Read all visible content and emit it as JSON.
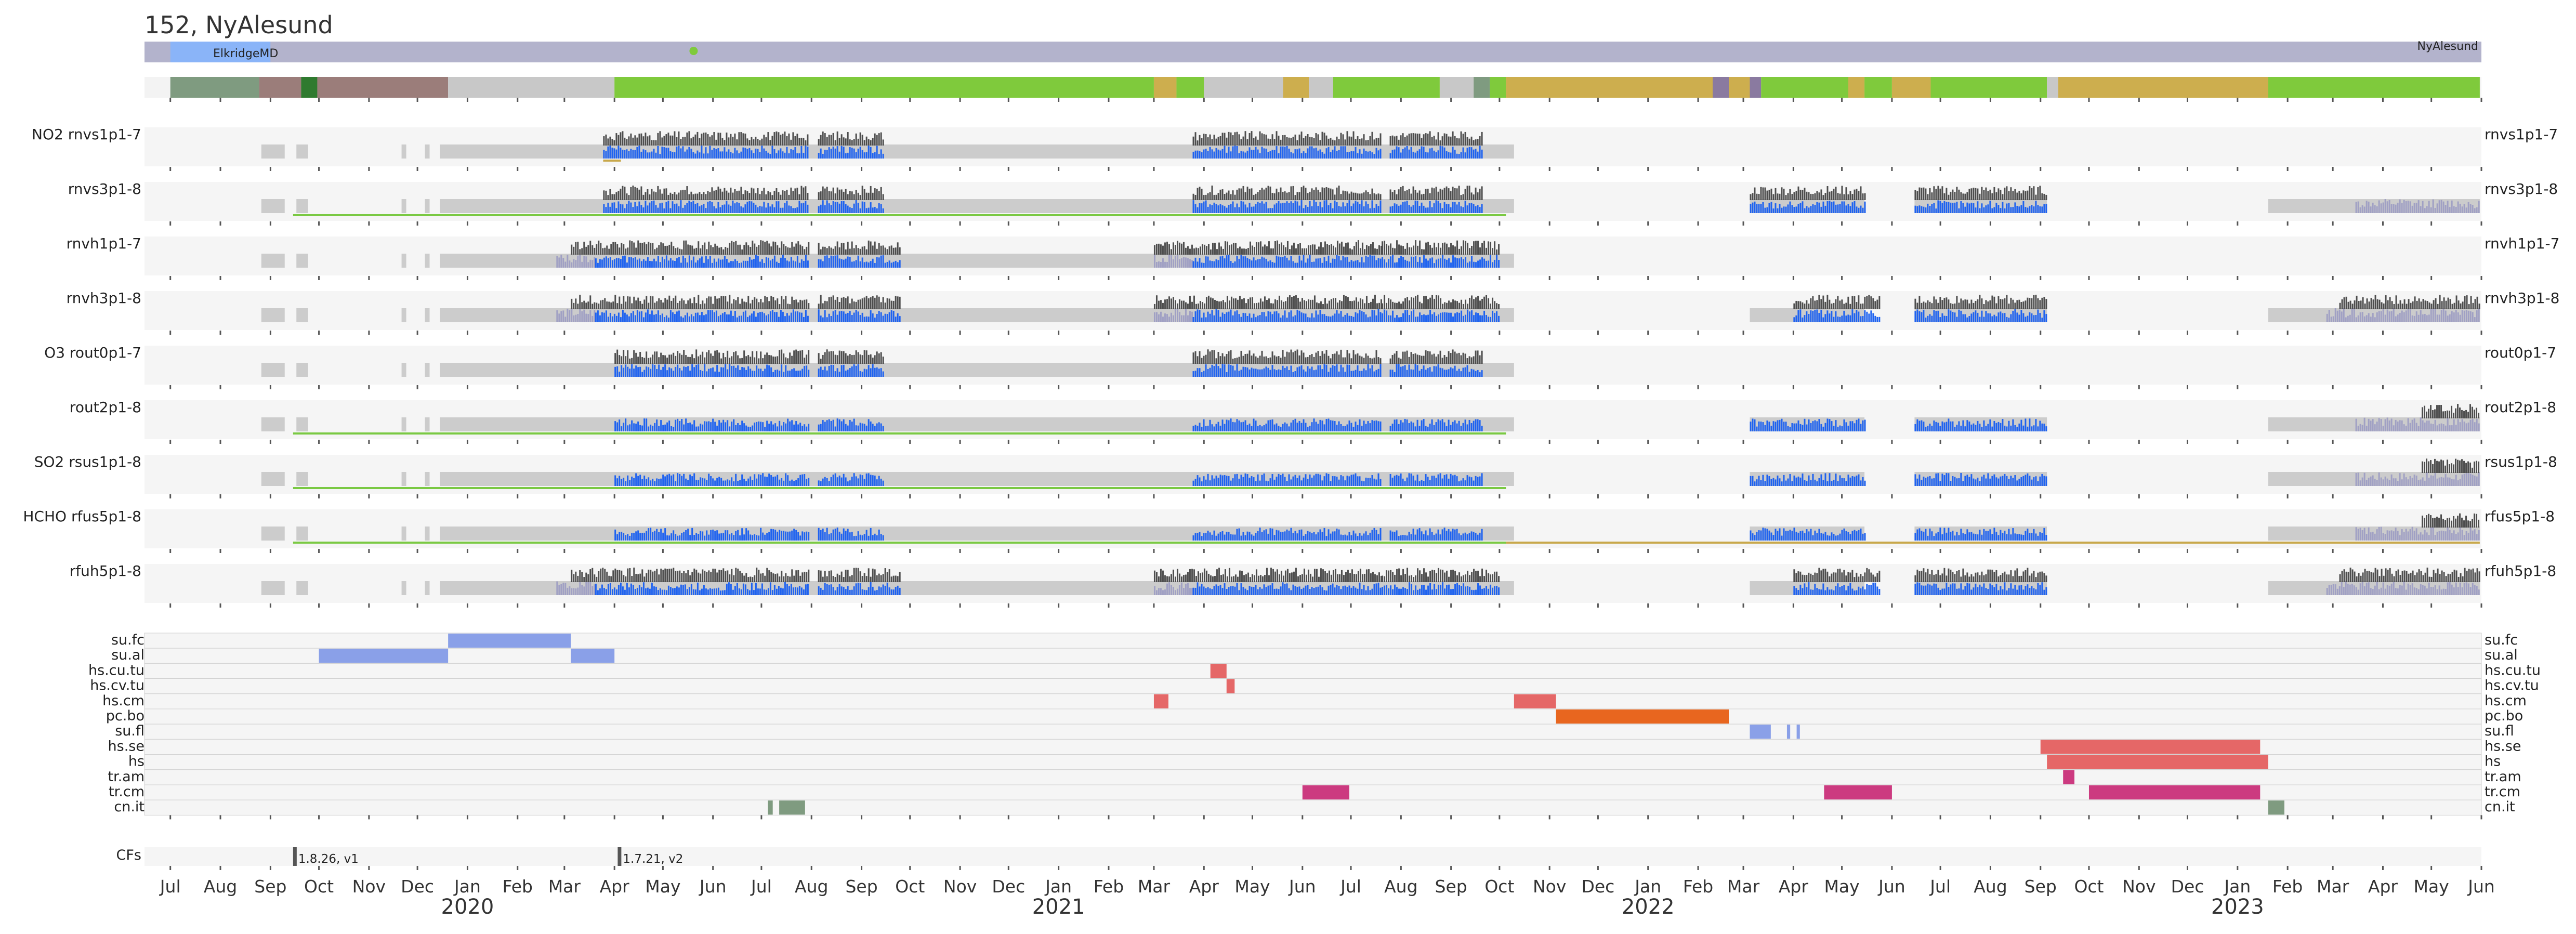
{
  "title": "152, NyAlesund",
  "location_labels": {
    "left": "ElkridgeMD",
    "right": "NyAlesund"
  },
  "colors": {
    "panel_bg": "#f5f5f5",
    "coverage_gray": "#cccccc",
    "dark_bars": "#4d4d4d",
    "blue_bars": "#1e62f0",
    "lavender_bars": "#a0a0c4",
    "green_line": "#7ac943",
    "yellow_line": "#c8a84b",
    "location_track": "#b3b3cc",
    "location_elkridge": "#8ab4f8",
    "status_green": "#7fca3c",
    "status_gold": "#cdae4e",
    "status_gray": "#c8c8c8",
    "status_brown": "#9b7d7a",
    "status_sage": "#7f9b80",
    "status_darkgreen": "#2f7a2f",
    "status_purple": "#8a7aa0",
    "event_blue": "#8aa0e8",
    "event_red": "#e56767",
    "event_orange": "#e8661f",
    "event_magenta": "#cc3a80",
    "event_sage": "#7f9b80",
    "cf_marker": "#555555"
  },
  "chart_data": {
    "type": "timeline",
    "time_range": [
      "2019-06-15",
      "2023-06-01"
    ],
    "x_months": [
      "Jul",
      "Aug",
      "Sep",
      "Oct",
      "Nov",
      "Dec",
      "Jan",
      "Feb",
      "Mar",
      "Apr",
      "May",
      "Jun",
      "Jul",
      "Aug",
      "Sep",
      "Oct",
      "Nov",
      "Dec",
      "Jan",
      "Feb",
      "Mar",
      "Apr",
      "May",
      "Jun",
      "Jul",
      "Aug",
      "Sep",
      "Oct",
      "Nov",
      "Dec",
      "Jan",
      "Feb",
      "Mar",
      "Apr",
      "May",
      "Jun",
      "Jul",
      "Aug",
      "Sep",
      "Oct",
      "Nov",
      "Dec",
      "Jan",
      "Feb",
      "Mar",
      "Apr",
      "May",
      "Jun"
    ],
    "x_years": [
      "2020",
      "2021",
      "2022",
      "2023"
    ],
    "location_track": [
      {
        "start": "2019-07-01",
        "end": "2019-09-01",
        "location": "ElkridgeMD"
      },
      {
        "start": "2019-09-01",
        "end": "2023-05-31",
        "location": "NyAlesund"
      }
    ],
    "location_marker_date": "2020-05-20",
    "status_track": [
      {
        "start": "2019-07-01",
        "end": "2019-08-25",
        "color": "sage"
      },
      {
        "start": "2019-08-25",
        "end": "2019-09-20",
        "color": "brown"
      },
      {
        "start": "2019-09-20",
        "end": "2019-09-30",
        "color": "darkgreen"
      },
      {
        "start": "2019-09-30",
        "end": "2019-12-20",
        "color": "brown"
      },
      {
        "start": "2019-12-20",
        "end": "2020-04-01",
        "color": "gray"
      },
      {
        "start": "2020-04-01",
        "end": "2021-03-01",
        "color": "green"
      },
      {
        "start": "2021-03-01",
        "end": "2021-03-15",
        "color": "gold"
      },
      {
        "start": "2021-03-15",
        "end": "2021-04-01",
        "color": "green"
      },
      {
        "start": "2021-04-01",
        "end": "2021-05-20",
        "color": "gray"
      },
      {
        "start": "2021-05-20",
        "end": "2021-06-05",
        "color": "gold"
      },
      {
        "start": "2021-06-05",
        "end": "2021-06-20",
        "color": "gray"
      },
      {
        "start": "2021-06-20",
        "end": "2021-08-25",
        "color": "green"
      },
      {
        "start": "2021-08-25",
        "end": "2021-09-15",
        "color": "gray"
      },
      {
        "start": "2021-09-15",
        "end": "2021-09-25",
        "color": "sage"
      },
      {
        "start": "2021-09-25",
        "end": "2021-10-05",
        "color": "green"
      },
      {
        "start": "2021-10-05",
        "end": "2022-02-10",
        "color": "gold"
      },
      {
        "start": "2022-02-10",
        "end": "2022-02-20",
        "color": "purple"
      },
      {
        "start": "2022-02-20",
        "end": "2022-03-05",
        "color": "gold"
      },
      {
        "start": "2022-03-05",
        "end": "2022-03-12",
        "color": "purple"
      },
      {
        "start": "2022-03-12",
        "end": "2022-05-05",
        "color": "green"
      },
      {
        "start": "2022-05-05",
        "end": "2022-05-15",
        "color": "gold"
      },
      {
        "start": "2022-05-15",
        "end": "2022-06-01",
        "color": "green"
      },
      {
        "start": "2022-06-01",
        "end": "2022-06-25",
        "color": "gold"
      },
      {
        "start": "2022-06-25",
        "end": "2022-09-05",
        "color": "green"
      },
      {
        "start": "2022-09-05",
        "end": "2022-09-12",
        "color": "gray"
      },
      {
        "start": "2022-09-12",
        "end": "2023-01-20",
        "color": "gold"
      },
      {
        "start": "2023-01-20",
        "end": "2023-05-31",
        "color": "green"
      }
    ],
    "products": [
      {
        "gas": "NO2",
        "name": "rnvs1p1-7",
        "line_color": "yellow",
        "line": [
          [
            "2020-03-25",
            "2020-04-05"
          ]
        ],
        "coverage": [
          [
            "2019-12-15",
            "2021-10-10"
          ]
        ],
        "bars_dark": [
          [
            "2020-03-25",
            "2020-07-30"
          ],
          [
            "2020-08-05",
            "2020-09-15"
          ],
          [
            "2021-03-25",
            "2021-07-20"
          ],
          [
            "2021-07-25",
            "2021-09-20"
          ]
        ],
        "bars_blue": [
          [
            "2020-03-25",
            "2020-07-30"
          ],
          [
            "2020-08-05",
            "2020-09-15"
          ],
          [
            "2021-03-25",
            "2021-07-20"
          ],
          [
            "2021-07-25",
            "2021-09-20"
          ]
        ],
        "bars_lavender": []
      },
      {
        "gas": "",
        "name": "rnvs3p1-8",
        "line_color": "green",
        "line": [
          [
            "2019-09-15",
            "2021-10-05"
          ]
        ],
        "coverage": [
          [
            "2019-12-15",
            "2021-10-10"
          ],
          [
            "2022-03-05",
            "2022-05-15"
          ],
          [
            "2022-06-15",
            "2022-09-05"
          ],
          [
            "2023-01-20",
            "2023-05-31"
          ]
        ],
        "bars_dark": [
          [
            "2020-03-25",
            "2020-07-30"
          ],
          [
            "2020-08-05",
            "2020-09-15"
          ],
          [
            "2021-03-25",
            "2021-07-20"
          ],
          [
            "2021-07-25",
            "2021-09-20"
          ],
          [
            "2022-03-05",
            "2022-05-15"
          ],
          [
            "2022-06-15",
            "2022-09-05"
          ]
        ],
        "bars_blue": [
          [
            "2020-03-25",
            "2020-07-30"
          ],
          [
            "2020-08-05",
            "2020-09-15"
          ],
          [
            "2021-03-25",
            "2021-07-20"
          ],
          [
            "2021-07-25",
            "2021-09-20"
          ],
          [
            "2022-03-05",
            "2022-05-15"
          ],
          [
            "2022-06-15",
            "2022-09-05"
          ]
        ],
        "bars_lavender": [
          [
            "2023-03-15",
            "2023-05-31"
          ]
        ]
      },
      {
        "gas": "",
        "name": "rnvh1p1-7",
        "line_color": "",
        "line": [],
        "coverage": [
          [
            "2019-12-15",
            "2021-10-10"
          ]
        ],
        "bars_dark": [
          [
            "2020-03-05",
            "2020-07-30"
          ],
          [
            "2020-08-05",
            "2020-09-25"
          ],
          [
            "2021-03-01",
            "2021-07-20"
          ],
          [
            "2021-07-20",
            "2021-10-01"
          ]
        ],
        "bars_blue": [
          [
            "2020-03-20",
            "2020-07-30"
          ],
          [
            "2020-08-05",
            "2020-09-25"
          ],
          [
            "2021-03-25",
            "2021-07-20"
          ],
          [
            "2021-07-20",
            "2021-10-01"
          ]
        ],
        "bars_lavender": [
          [
            "2020-02-25",
            "2020-03-20"
          ],
          [
            "2021-03-01",
            "2021-03-25"
          ]
        ]
      },
      {
        "gas": "",
        "name": "rnvh3p1-8",
        "line_color": "",
        "line": [],
        "coverage": [
          [
            "2019-12-15",
            "2021-10-10"
          ],
          [
            "2022-03-05",
            "2022-05-15"
          ],
          [
            "2022-06-15",
            "2022-09-05"
          ],
          [
            "2023-01-20",
            "2023-05-31"
          ]
        ],
        "bars_dark": [
          [
            "2020-03-05",
            "2020-07-30"
          ],
          [
            "2020-08-05",
            "2020-09-25"
          ],
          [
            "2021-03-01",
            "2021-07-20"
          ],
          [
            "2021-07-20",
            "2021-10-01"
          ],
          [
            "2022-04-01",
            "2022-05-25"
          ],
          [
            "2022-06-15",
            "2022-09-05"
          ],
          [
            "2023-03-05",
            "2023-05-31"
          ]
        ],
        "bars_blue": [
          [
            "2020-03-20",
            "2020-07-30"
          ],
          [
            "2020-08-05",
            "2020-09-25"
          ],
          [
            "2021-03-25",
            "2021-07-20"
          ],
          [
            "2021-07-20",
            "2021-10-01"
          ],
          [
            "2022-04-01",
            "2022-05-25"
          ],
          [
            "2022-06-15",
            "2022-09-05"
          ]
        ],
        "bars_lavender": [
          [
            "2020-02-25",
            "2020-03-20"
          ],
          [
            "2021-03-01",
            "2021-03-25"
          ],
          [
            "2023-02-25",
            "2023-05-31"
          ]
        ]
      },
      {
        "gas": "O3",
        "name": "rout0p1-7",
        "line_color": "",
        "line": [],
        "coverage": [
          [
            "2019-12-15",
            "2021-10-10"
          ]
        ],
        "bars_dark": [
          [
            "2020-04-01",
            "2020-07-30"
          ],
          [
            "2020-08-05",
            "2020-09-15"
          ],
          [
            "2021-03-25",
            "2021-07-20"
          ],
          [
            "2021-07-25",
            "2021-09-20"
          ]
        ],
        "bars_blue": [
          [
            "2020-04-01",
            "2020-07-30"
          ],
          [
            "2020-08-05",
            "2020-09-15"
          ],
          [
            "2021-03-25",
            "2021-07-20"
          ],
          [
            "2021-07-25",
            "2021-09-20"
          ]
        ],
        "bars_lavender": []
      },
      {
        "gas": "",
        "name": "rout2p1-8",
        "line_color": "green",
        "line": [
          [
            "2019-09-15",
            "2021-10-05"
          ]
        ],
        "coverage": [
          [
            "2019-12-15",
            "2021-10-10"
          ],
          [
            "2022-03-05",
            "2022-05-15"
          ],
          [
            "2022-06-15",
            "2022-09-05"
          ],
          [
            "2023-01-20",
            "2023-05-31"
          ]
        ],
        "bars_dark": [
          [
            "2023-04-25",
            "2023-05-31"
          ]
        ],
        "bars_blue": [
          [
            "2020-04-01",
            "2020-07-30"
          ],
          [
            "2020-08-05",
            "2020-09-15"
          ],
          [
            "2021-03-25",
            "2021-07-20"
          ],
          [
            "2021-07-25",
            "2021-09-20"
          ],
          [
            "2022-03-05",
            "2022-05-15"
          ],
          [
            "2022-06-15",
            "2022-09-05"
          ]
        ],
        "bars_lavender": [
          [
            "2023-03-15",
            "2023-05-31"
          ]
        ]
      },
      {
        "gas": "SO2",
        "name": "rsus1p1-8",
        "line_color": "green",
        "line": [
          [
            "2019-09-15",
            "2021-10-05"
          ]
        ],
        "coverage": [
          [
            "2019-12-15",
            "2021-10-10"
          ],
          [
            "2022-03-05",
            "2022-05-15"
          ],
          [
            "2022-06-15",
            "2022-09-05"
          ],
          [
            "2023-01-20",
            "2023-05-31"
          ]
        ],
        "bars_dark": [
          [
            "2023-04-25",
            "2023-05-31"
          ]
        ],
        "bars_blue": [
          [
            "2020-04-01",
            "2020-07-30"
          ],
          [
            "2020-08-05",
            "2020-09-15"
          ],
          [
            "2021-03-25",
            "2021-07-20"
          ],
          [
            "2021-07-25",
            "2021-09-20"
          ],
          [
            "2022-03-05",
            "2022-05-15"
          ],
          [
            "2022-06-15",
            "2022-09-05"
          ]
        ],
        "bars_lavender": [
          [
            "2023-03-15",
            "2023-05-31"
          ]
        ]
      },
      {
        "gas": "HCHO",
        "name": "rfus5p1-8",
        "line_color": "green",
        "line": [
          [
            "2019-09-15",
            "2021-10-05"
          ]
        ],
        "line2_color": "yellow",
        "line2": [
          [
            "2021-10-05",
            "2023-05-31"
          ]
        ],
        "coverage": [
          [
            "2019-12-15",
            "2021-10-10"
          ],
          [
            "2022-03-05",
            "2022-05-15"
          ],
          [
            "2022-06-15",
            "2022-09-05"
          ],
          [
            "2023-01-20",
            "2023-05-31"
          ]
        ],
        "bars_dark": [
          [
            "2023-04-25",
            "2023-05-31"
          ]
        ],
        "bars_blue": [
          [
            "2020-04-01",
            "2020-07-30"
          ],
          [
            "2020-08-05",
            "2020-09-15"
          ],
          [
            "2021-03-25",
            "2021-07-20"
          ],
          [
            "2021-07-25",
            "2021-09-20"
          ],
          [
            "2022-03-05",
            "2022-05-15"
          ],
          [
            "2022-06-15",
            "2022-09-05"
          ]
        ],
        "bars_lavender": [
          [
            "2023-03-15",
            "2023-05-31"
          ]
        ]
      },
      {
        "gas": "",
        "name": "rfuh5p1-8",
        "line_color": "",
        "line": [],
        "coverage": [
          [
            "2019-12-15",
            "2021-10-10"
          ],
          [
            "2022-03-05",
            "2022-05-15"
          ],
          [
            "2022-06-15",
            "2022-09-05"
          ],
          [
            "2023-01-20",
            "2023-05-31"
          ]
        ],
        "bars_dark": [
          [
            "2020-03-05",
            "2020-07-30"
          ],
          [
            "2020-08-05",
            "2020-09-25"
          ],
          [
            "2021-03-01",
            "2021-07-20"
          ],
          [
            "2021-07-20",
            "2021-10-01"
          ],
          [
            "2022-04-01",
            "2022-05-25"
          ],
          [
            "2022-06-15",
            "2022-09-05"
          ],
          [
            "2023-03-05",
            "2023-05-31"
          ]
        ],
        "bars_blue": [
          [
            "2020-03-20",
            "2020-07-30"
          ],
          [
            "2020-08-05",
            "2020-09-25"
          ],
          [
            "2021-03-25",
            "2021-07-20"
          ],
          [
            "2021-07-20",
            "2021-10-01"
          ],
          [
            "2022-04-01",
            "2022-05-25"
          ],
          [
            "2022-06-15",
            "2022-09-05"
          ]
        ],
        "bars_lavender": [
          [
            "2020-02-25",
            "2020-03-20"
          ],
          [
            "2021-03-01",
            "2021-03-25"
          ],
          [
            "2023-02-25",
            "2023-05-31"
          ]
        ]
      }
    ],
    "events": [
      {
        "label": "su.fc",
        "color": "blue",
        "spans": [
          [
            "2019-12-20",
            "2020-03-05"
          ]
        ]
      },
      {
        "label": "su.al",
        "color": "blue",
        "spans": [
          [
            "2019-10-01",
            "2019-12-20"
          ],
          [
            "2020-03-05",
            "2020-04-01"
          ]
        ]
      },
      {
        "label": "hs.cu.tu",
        "color": "red",
        "spans": [
          [
            "2021-04-05",
            "2021-04-15"
          ]
        ]
      },
      {
        "label": "hs.cv.tu",
        "color": "red",
        "spans": [
          [
            "2021-04-15",
            "2021-04-20"
          ]
        ]
      },
      {
        "label": "hs.cm",
        "color": "red",
        "spans": [
          [
            "2021-03-01",
            "2021-03-10"
          ],
          [
            "2021-10-10",
            "2021-11-05"
          ]
        ]
      },
      {
        "label": "pc.bo",
        "color": "orange",
        "spans": [
          [
            "2021-11-05",
            "2022-02-20"
          ]
        ]
      },
      {
        "label": "su.fl",
        "color": "blue",
        "spans": [
          [
            "2022-03-05",
            "2022-03-18"
          ],
          [
            "2022-03-28",
            "2022-03-30"
          ],
          [
            "2022-04-03",
            "2022-04-05"
          ]
        ]
      },
      {
        "label": "hs.se",
        "color": "red",
        "spans": [
          [
            "2022-09-01",
            "2023-01-15"
          ]
        ]
      },
      {
        "label": "hs",
        "color": "red",
        "spans": [
          [
            "2022-09-05",
            "2023-01-20"
          ]
        ]
      },
      {
        "label": "tr.am",
        "color": "magenta",
        "spans": [
          [
            "2022-09-15",
            "2022-09-22"
          ]
        ]
      },
      {
        "label": "tr.cm",
        "color": "magenta",
        "spans": [
          [
            "2021-06-01",
            "2021-06-30"
          ],
          [
            "2022-04-20",
            "2022-06-01"
          ],
          [
            "2022-10-01",
            "2023-01-15"
          ]
        ]
      },
      {
        "label": "cn.it",
        "color": "sage",
        "spans": [
          [
            "2020-07-05",
            "2020-07-08"
          ],
          [
            "2020-07-12",
            "2020-07-28"
          ],
          [
            "2023-01-20",
            "2023-01-30"
          ]
        ]
      }
    ],
    "cfs": {
      "label": "CFs",
      "markers": [
        {
          "date": "2019-09-15",
          "text": "1.8.26, v1"
        },
        {
          "date": "2020-04-03",
          "text": "1.7.21, v2"
        }
      ]
    }
  }
}
